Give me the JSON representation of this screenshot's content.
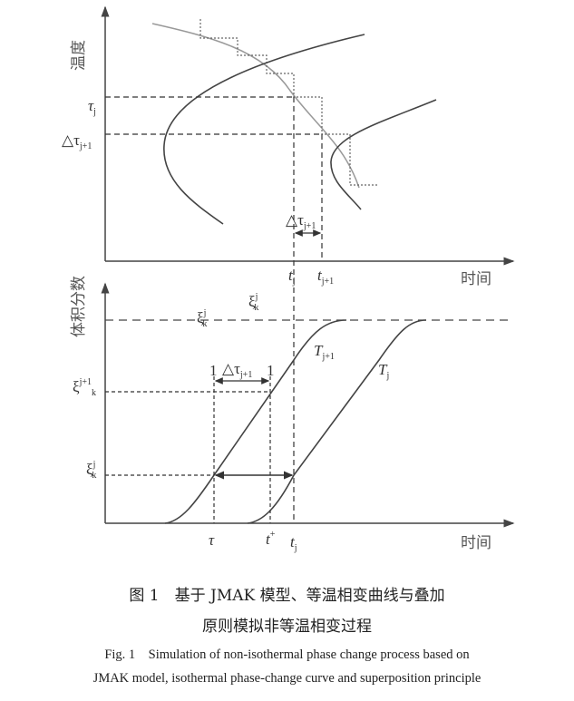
{
  "top_plot": {
    "y_axis_label": "温度",
    "x_axis_label": "时间",
    "tau_j": "τ",
    "tau_j_sub": "j",
    "delta_tau_label": "△τ",
    "delta_tau_sub": "j+1",
    "t_j": "t",
    "t_j_sub": "j",
    "t_j1": "t",
    "t_j1_sub": "j+1"
  },
  "bottom_plot": {
    "y_axis_label": "体积分数",
    "x_axis_label": "时间",
    "xi": "ξ",
    "xi_sup_j": "j",
    "xi_sup_j1": "j+1",
    "xi_sub": "k",
    "curve_upper": "T",
    "curve_upper_sub": "j+1",
    "curve_lower": "T",
    "curve_lower_sub": "j",
    "one": "1",
    "delta_tau_label": "△τ",
    "delta_tau_sub": "j+1",
    "tau": "τ",
    "t_plus": "t",
    "t_plus_sup": "+",
    "t_j": "t",
    "t_j_sub": "j"
  },
  "caption": {
    "cn_line1": "图 1　基于 JMAK 模型、等温相变曲线与叠加",
    "cn_line2": "原则模拟非等温相变过程",
    "en_line1": "Fig. 1　Simulation of non-isothermal phase change process based on",
    "en_line2": "JMAK model, isothermal phase-change curve and superposition principle"
  }
}
